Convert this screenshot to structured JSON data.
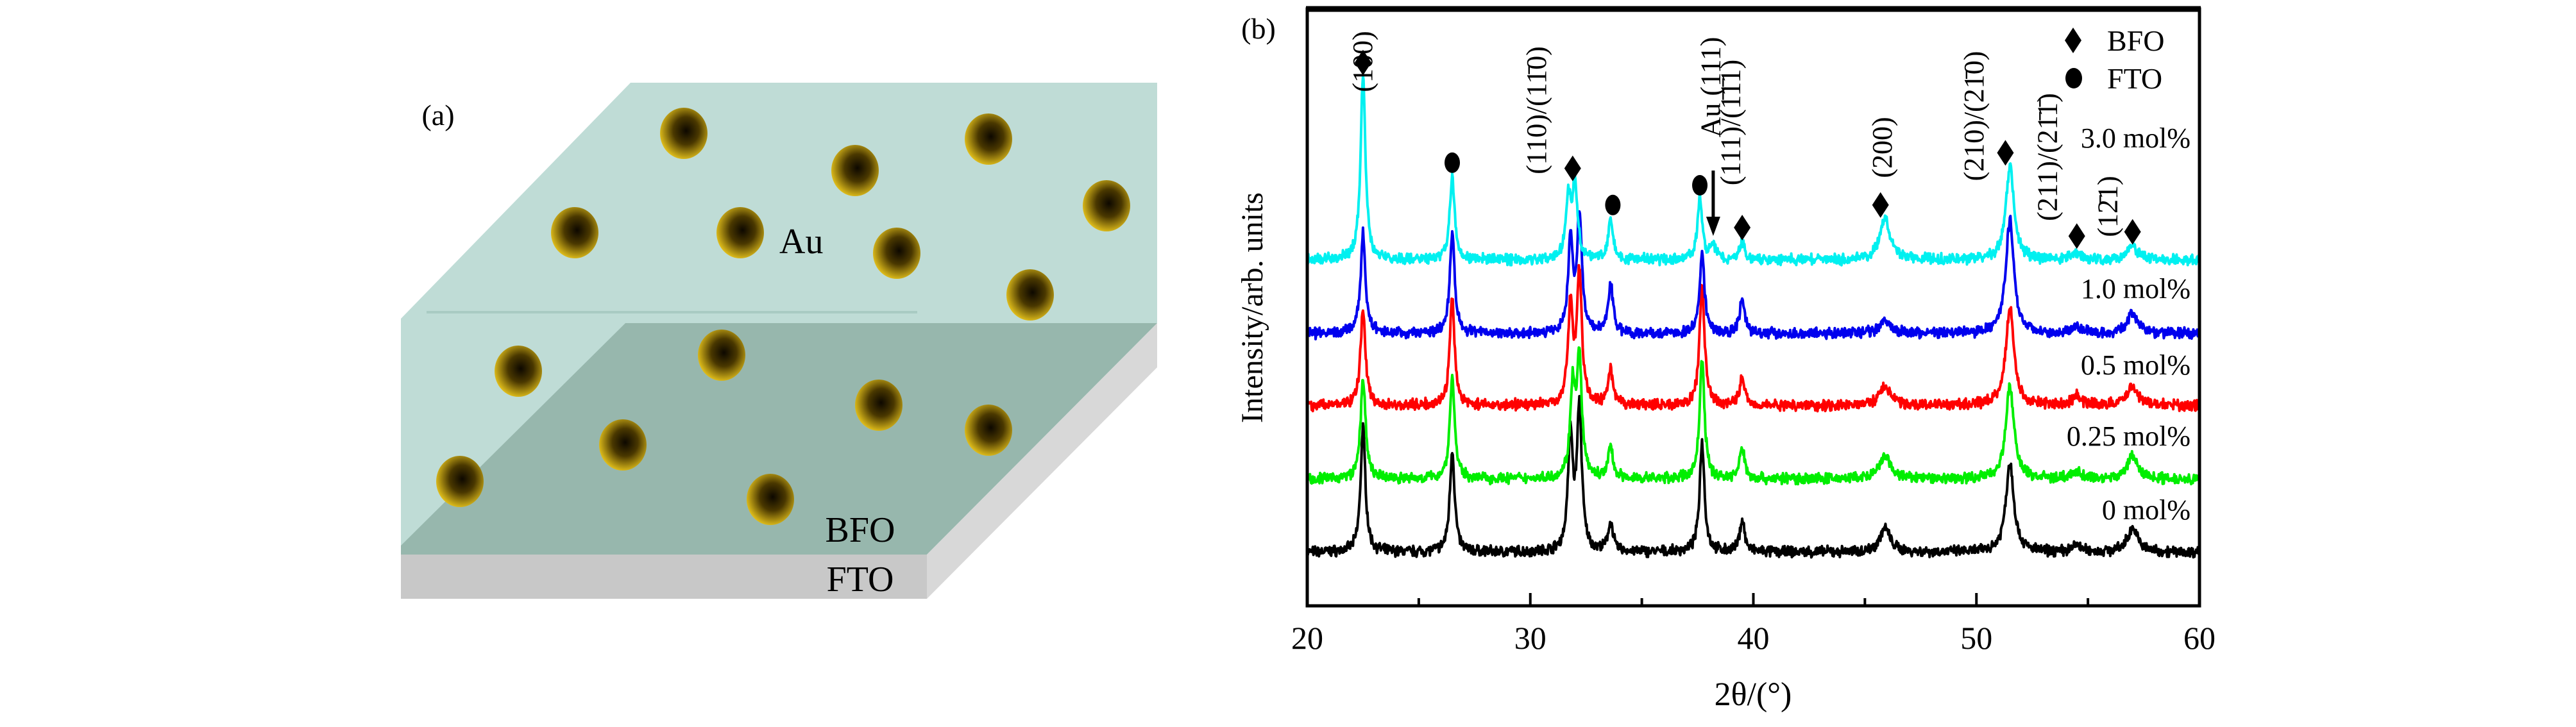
{
  "panel_a": {
    "label": "(a)",
    "layer_labels": {
      "top": "Au",
      "middle": "BFO",
      "bottom": "FTO"
    },
    "colors": {
      "bfo_light": "#bfdcd6",
      "bfo_dark": "#97b7ad",
      "fto_front": "#c8c8c8",
      "fto_side": "#d6d6d6",
      "particle_edge": "#e8c21a",
      "particle_core": "#1a1200"
    },
    "particle_icon": "gold-nanoparticle-sphere"
  },
  "panel_b": {
    "label": "(b)",
    "legend": [
      {
        "marker": "diamond",
        "label": "BFO"
      },
      {
        "marker": "circle",
        "label": "FTO"
      }
    ],
    "peak_labels": [
      {
        "text": "(100)",
        "two_theta": 22.5
      },
      {
        "text": "(110)/(11̄0)",
        "two_theta": 30.3
      },
      {
        "text": "Au (111)",
        "two_theta": 38.1
      },
      {
        "text": "(111)/(1̄1̄1)",
        "two_theta": 39.0
      },
      {
        "text": "(200)",
        "two_theta": 45.8
      },
      {
        "text": "(210)/(21̄0)",
        "two_theta": 49.9
      },
      {
        "text": "(211)/(21̄1̄)",
        "two_theta": 53.2
      },
      {
        "text": "(12̄1)",
        "two_theta": 55.9
      }
    ],
    "markers": {
      "diamond": [
        [
          22.5,
          347
        ],
        [
          31.9,
          272
        ],
        [
          39.5,
          230
        ],
        [
          45.7,
          246
        ],
        [
          51.3,
          283
        ],
        [
          54.5,
          224
        ],
        [
          57.0,
          227
        ]
      ],
      "circle": [
        [
          26.5,
          276
        ],
        [
          33.7,
          246
        ],
        [
          37.6,
          260
        ]
      ]
    },
    "arrow_two_theta": 38.2
  },
  "chart_data": {
    "type": "line",
    "title": "",
    "xlabel": "2θ/(°)",
    "ylabel": "Intensity/arb. units",
    "xlim": [
      20,
      60
    ],
    "ylim": [
      -38,
      385
    ],
    "xticks": [
      20,
      30,
      40,
      50,
      60
    ],
    "xticks_minor": [
      25,
      35,
      45,
      55
    ],
    "yticks": [],
    "grid": false,
    "legend_position": "top-right",
    "series": [
      {
        "name": "0 mol%",
        "color": "#000000",
        "offset": 0,
        "peaks": [
          [
            22.5,
            88
          ],
          [
            26.5,
            72
          ],
          [
            31.8,
            82
          ],
          [
            32.2,
            100
          ],
          [
            33.6,
            21
          ],
          [
            37.7,
            78
          ],
          [
            39.5,
            23
          ],
          [
            45.9,
            17
          ],
          [
            51.5,
            63
          ],
          [
            54.5,
            5
          ],
          [
            57.0,
            17
          ]
        ]
      },
      {
        "name": "0.25 mol%",
        "color": "#00ee00",
        "offset": 52,
        "peaks": [
          [
            22.5,
            72
          ],
          [
            26.5,
            72
          ],
          [
            31.9,
            63
          ],
          [
            32.2,
            83
          ],
          [
            33.6,
            22
          ],
          [
            37.7,
            84
          ],
          [
            39.5,
            22
          ],
          [
            45.9,
            16
          ],
          [
            51.5,
            65
          ],
          [
            54.5,
            5
          ],
          [
            57.0,
            16
          ]
        ]
      },
      {
        "name": "0.5 mol%",
        "color": "#ff0000",
        "offset": 104,
        "peaks": [
          [
            22.5,
            69
          ],
          [
            26.5,
            75
          ],
          [
            31.8,
            70
          ],
          [
            32.2,
            93
          ],
          [
            33.6,
            24
          ],
          [
            37.7,
            86
          ],
          [
            39.5,
            20
          ],
          [
            45.9,
            14
          ],
          [
            51.5,
            69
          ],
          [
            54.5,
            7
          ],
          [
            57.0,
            14
          ]
        ]
      },
      {
        "name": "1.0 mol%",
        "color": "#0000ee",
        "offset": 155,
        "peaks": [
          [
            22.5,
            71
          ],
          [
            26.5,
            72
          ],
          [
            31.8,
            64
          ],
          [
            32.2,
            82
          ],
          [
            33.6,
            35
          ],
          [
            37.7,
            57
          ],
          [
            39.5,
            25
          ],
          [
            45.9,
            9
          ],
          [
            51.5,
            80
          ],
          [
            54.5,
            5
          ],
          [
            57.0,
            14
          ]
        ]
      },
      {
        "name": "3.0 mol%",
        "color": "#00f0f0",
        "offset": 207,
        "peaks": [
          [
            22.5,
            131
          ],
          [
            26.5,
            60
          ],
          [
            31.7,
            44
          ],
          [
            32.0,
            55
          ],
          [
            33.6,
            29
          ],
          [
            37.6,
            44
          ],
          [
            38.2,
            10
          ],
          [
            39.5,
            12
          ],
          [
            45.9,
            30
          ],
          [
            51.5,
            66
          ],
          [
            54.5,
            5
          ],
          [
            57.0,
            10
          ]
        ]
      }
    ]
  }
}
